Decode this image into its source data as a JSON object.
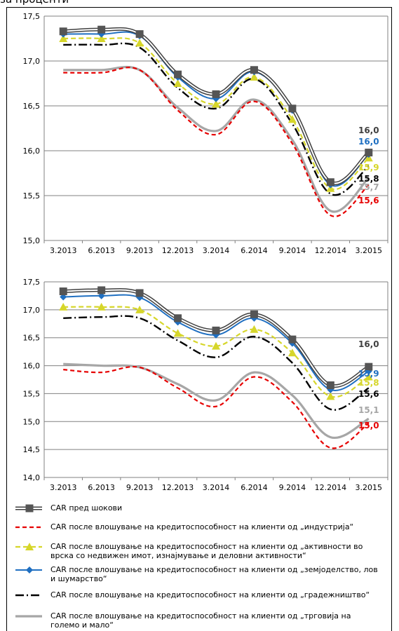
{
  "header": {
    "text": "за проценти"
  },
  "colors": {
    "shocks": "#404040",
    "industry": "#e60000",
    "realestate": "#d6d62a",
    "agriculture": "#1f6fc1",
    "construction": "#000000",
    "trade": "#a6a6a6"
  },
  "legend": [
    {
      "key": "shocks",
      "label": "CAR пред шокови"
    },
    {
      "key": "industry",
      "label": "CAR после влошување на кредитоспособност на клиенти од „индустрија“"
    },
    {
      "key": "realestate",
      "label": "CAR после влошување на кредитоспособност на клиенти од „активности во врска со недвижен имот, изнајмување и деловни активности“"
    },
    {
      "key": "agriculture",
      "label": "CAR после влошување на кредитоспособност на клиенти од „земјоделство, лов и шумарство“"
    },
    {
      "key": "construction",
      "label": "CAR после влошување на кредитоспособност на клиенти од „градежништво“"
    },
    {
      "key": "trade",
      "label": "CAR после влошување на кредитоспособност на клиенти од „трговија на големо и мало“"
    }
  ],
  "chart_data": [
    {
      "type": "line",
      "categories": [
        "3.2013",
        "6.2013",
        "9.2013",
        "12.2013",
        "3.2014",
        "6.2014",
        "9.2014",
        "12.2014",
        "3.2015"
      ],
      "ylim": [
        15.0,
        17.5
      ],
      "yticks": [
        "15,0",
        "15,5",
        "16,0",
        "16,5",
        "17,0",
        "17,5"
      ],
      "grid": true,
      "series": [
        {
          "key": "shocks",
          "values": [
            17.33,
            17.35,
            17.3,
            16.85,
            16.63,
            16.9,
            16.47,
            15.65,
            15.98
          ]
        },
        {
          "key": "industry",
          "values": [
            16.87,
            16.87,
            16.9,
            16.45,
            16.18,
            16.55,
            16.08,
            15.28,
            15.62
          ]
        },
        {
          "key": "realestate",
          "values": [
            17.25,
            17.25,
            17.2,
            16.75,
            16.52,
            16.82,
            16.35,
            15.58,
            15.92
          ]
        },
        {
          "key": "agriculture",
          "values": [
            17.3,
            17.3,
            17.28,
            16.82,
            16.58,
            16.88,
            16.45,
            15.62,
            15.96
          ]
        },
        {
          "key": "construction",
          "values": [
            17.18,
            17.18,
            17.15,
            16.7,
            16.47,
            16.8,
            16.3,
            15.52,
            15.83
          ]
        },
        {
          "key": "trade",
          "values": [
            16.9,
            16.9,
            16.9,
            16.48,
            16.22,
            16.57,
            16.12,
            15.33,
            15.7
          ]
        }
      ],
      "end_labels": [
        {
          "text": "16,0",
          "key": "shocks"
        },
        {
          "text": "16,0",
          "key": "agriculture"
        },
        {
          "text": "15,9",
          "key": "realestate"
        },
        {
          "text": "15,8",
          "key": "construction"
        },
        {
          "text": "15,7",
          "key": "trade"
        },
        {
          "text": "15,6",
          "key": "industry"
        }
      ]
    },
    {
      "type": "line",
      "categories": [
        "3.2013",
        "6.2013",
        "9.2013",
        "12.2013",
        "3.2014",
        "6.2014",
        "9.2014",
        "12.2014",
        "3.2015"
      ],
      "ylim": [
        14.0,
        17.5
      ],
      "yticks": [
        "14,0",
        "14,5",
        "15,0",
        "15,5",
        "16,0",
        "16,5",
        "17,0",
        "17,5"
      ],
      "grid": true,
      "series": [
        {
          "key": "shocks",
          "values": [
            17.33,
            17.35,
            17.3,
            16.85,
            16.63,
            16.92,
            16.47,
            15.65,
            15.98
          ]
        },
        {
          "key": "industry",
          "values": [
            15.93,
            15.88,
            15.97,
            15.6,
            15.27,
            15.8,
            15.35,
            14.53,
            14.97
          ]
        },
        {
          "key": "realestate",
          "values": [
            17.05,
            17.05,
            17.0,
            16.58,
            16.35,
            16.65,
            16.23,
            15.45,
            15.8
          ]
        },
        {
          "key": "agriculture",
          "values": [
            17.23,
            17.25,
            17.22,
            16.78,
            16.55,
            16.85,
            16.4,
            15.57,
            15.9
          ]
        },
        {
          "key": "construction",
          "values": [
            16.85,
            16.87,
            16.85,
            16.45,
            16.15,
            16.52,
            16.05,
            15.22,
            15.6
          ]
        },
        {
          "key": "trade",
          "values": [
            16.03,
            16.0,
            15.97,
            15.67,
            15.38,
            15.88,
            15.47,
            14.72,
            15.05
          ]
        }
      ],
      "end_labels": [
        {
          "text": "16,0",
          "key": "shocks"
        },
        {
          "text": "15,9",
          "key": "agriculture"
        },
        {
          "text": "15,8",
          "key": "realestate"
        },
        {
          "text": "15,6",
          "key": "construction"
        },
        {
          "text": "15,1",
          "key": "trade"
        },
        {
          "text": "15,0",
          "key": "industry"
        }
      ]
    }
  ]
}
